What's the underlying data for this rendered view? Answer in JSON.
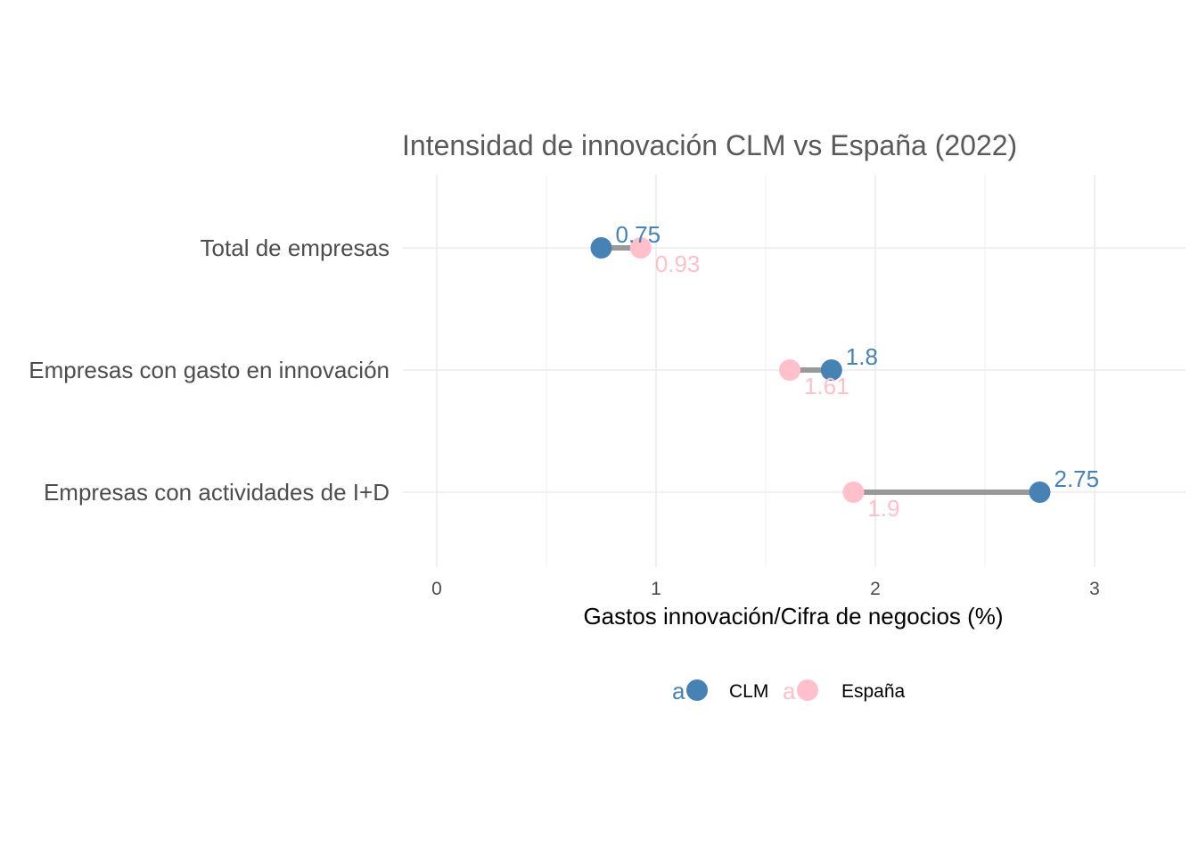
{
  "chart_data": {
    "type": "dumbbell",
    "title": "Intensidad de innovación CLM vs España (2022)",
    "xlabel": "Gastos innovación/Cifra de negocios (%)",
    "ylabel": "",
    "xlim": [
      0,
      3.4
    ],
    "x_ticks": [
      0,
      1,
      2,
      3
    ],
    "x_tick_labels": [
      "0",
      "1",
      "2",
      "3"
    ],
    "grid": true,
    "legend_position": "bottom",
    "categories": [
      "Total de empresas",
      "Empresas con gasto en innovación",
      "Empresas con actividades de I+D"
    ],
    "series": [
      {
        "name": "CLM",
        "color": "#4682b4",
        "values": [
          0.75,
          1.8,
          2.75
        ],
        "labels": [
          "0.75",
          "1.8",
          "2.75"
        ]
      },
      {
        "name": "España",
        "color": "#ffc0cb",
        "values": [
          0.93,
          1.61,
          1.9
        ],
        "labels": [
          "0.93",
          "1.61",
          "1.9"
        ]
      }
    ],
    "segment_color": "#999999",
    "legend_key_glyph": "a"
  }
}
